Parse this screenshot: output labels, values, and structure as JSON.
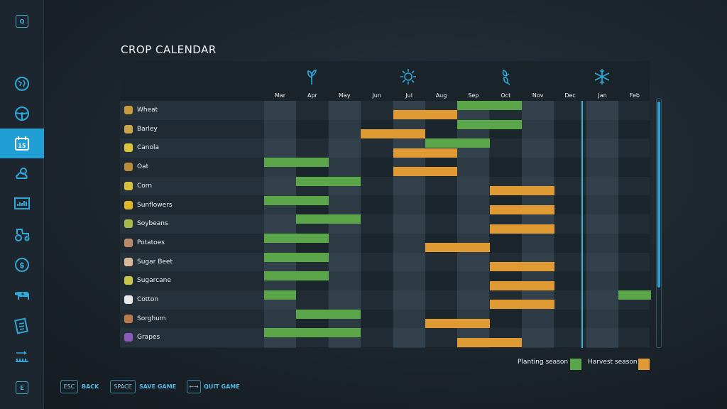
{
  "sidebar": {
    "top_key": "Q",
    "bottom_key": "E",
    "items": [
      {
        "name": "globe-icon",
        "active": false
      },
      {
        "name": "steering-wheel-icon",
        "active": false
      },
      {
        "name": "calendar-icon",
        "active": true,
        "label": "15"
      },
      {
        "name": "weather-icon",
        "active": false
      },
      {
        "name": "stats-icon",
        "active": false
      },
      {
        "name": "tractor-icon",
        "active": false
      },
      {
        "name": "dollar-icon",
        "active": false
      },
      {
        "name": "cow-icon",
        "active": false
      },
      {
        "name": "contracts-icon",
        "active": false
      },
      {
        "name": "production-icon",
        "active": false
      }
    ]
  },
  "page": {
    "title": "CROP CALENDAR"
  },
  "calendar": {
    "months": [
      "Mar",
      "Apr",
      "May",
      "Jun",
      "Jul",
      "Aug",
      "Sep",
      "Oct",
      "Nov",
      "Dec",
      "Jan",
      "Feb"
    ],
    "seasons": [
      "spring-sprout-icon",
      "summer-sun-icon",
      "autumn-leaves-icon",
      "winter-snowflake-icon"
    ],
    "today_month_fraction": 9.85,
    "crops": [
      {
        "name": "Wheat",
        "icon_color": "#c99a3a",
        "plant": [
          [
            6,
            8
          ]
        ],
        "harvest": [
          [
            4,
            6
          ]
        ]
      },
      {
        "name": "Barley",
        "icon_color": "#c9a44a",
        "plant": [
          [
            6,
            8
          ]
        ],
        "harvest": [
          [
            3,
            5
          ]
        ]
      },
      {
        "name": "Canola",
        "icon_color": "#d9c43a",
        "plant": [
          [
            5,
            7
          ]
        ],
        "harvest": [
          [
            4,
            6
          ]
        ]
      },
      {
        "name": "Oat",
        "icon_color": "#b98a3a",
        "plant": [
          [
            0,
            2
          ]
        ],
        "harvest": [
          [
            4,
            6
          ]
        ]
      },
      {
        "name": "Corn",
        "icon_color": "#d8c23a",
        "plant": [
          [
            1,
            3
          ]
        ],
        "harvest": [
          [
            7,
            9
          ]
        ]
      },
      {
        "name": "Sunflowers",
        "icon_color": "#e0b52a",
        "plant": [
          [
            0,
            2
          ]
        ],
        "harvest": [
          [
            7,
            9
          ]
        ]
      },
      {
        "name": "Soybeans",
        "icon_color": "#a8b84a",
        "plant": [
          [
            1,
            3
          ]
        ],
        "harvest": [
          [
            7,
            9
          ]
        ]
      },
      {
        "name": "Potatoes",
        "icon_color": "#b98a6a",
        "plant": [
          [
            0,
            2
          ]
        ],
        "harvest": [
          [
            5,
            7
          ]
        ]
      },
      {
        "name": "Sugar Beet",
        "icon_color": "#d9b89a",
        "plant": [
          [
            0,
            2
          ]
        ],
        "harvest": [
          [
            7,
            9
          ]
        ]
      },
      {
        "name": "Sugarcane",
        "icon_color": "#c9c44a",
        "plant": [
          [
            0,
            2
          ]
        ],
        "harvest": [
          [
            7,
            9
          ]
        ]
      },
      {
        "name": "Cotton",
        "icon_color": "#e8e8e8",
        "plant": [
          [
            0,
            1
          ],
          [
            11,
            12
          ]
        ],
        "harvest": [
          [
            7,
            9
          ]
        ]
      },
      {
        "name": "Sorghum",
        "icon_color": "#b97a4a",
        "plant": [
          [
            1,
            3
          ]
        ],
        "harvest": [
          [
            5,
            7
          ]
        ]
      },
      {
        "name": "Grapes",
        "icon_color": "#8a5ab9",
        "plant": [
          [
            0,
            3
          ]
        ],
        "harvest": [
          [
            6,
            8
          ]
        ]
      }
    ]
  },
  "legend": {
    "planting_label": "Planting season",
    "harvest_label": "Harvest season",
    "planting_color": "#5ca64a",
    "harvest_color": "#e09a33"
  },
  "footer": {
    "back_key": "ESC",
    "back_label": "BACK",
    "save_key": "SPACE",
    "save_label": "SAVE GAME",
    "quit_key": "←→",
    "quit_label": "QUIT GAME"
  }
}
